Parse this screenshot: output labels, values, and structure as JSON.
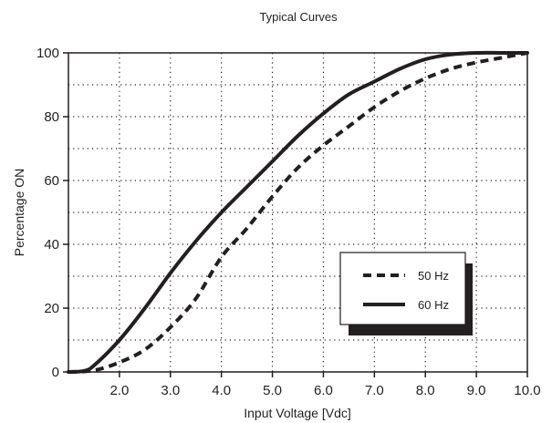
{
  "chart_data": {
    "type": "line",
    "title": "Typical Curves",
    "xlabel": "Input Voltage [Vdc]",
    "ylabel": "Percentage ON",
    "xlim": [
      1.0,
      10.0
    ],
    "ylim": [
      0,
      100
    ],
    "x_ticks": [
      2.0,
      3.0,
      4.0,
      5.0,
      6.0,
      7.0,
      8.0,
      9.0,
      10.0
    ],
    "x_tick_labels": [
      "2.0",
      "3.0",
      "4.0",
      "5.0",
      "6.0",
      "7.0",
      "8.0",
      "9.0",
      "10.0"
    ],
    "y_ticks": [
      0,
      20,
      40,
      60,
      80,
      100
    ],
    "y_tick_labels": [
      "0",
      "20",
      "40",
      "60",
      "80",
      "100"
    ],
    "grid": "dotted",
    "legend_position": "lower-right",
    "series": [
      {
        "name": "50 Hz",
        "style": "dashed",
        "color": "#231f20",
        "x": [
          1.0,
          1.5,
          2.0,
          2.5,
          3.0,
          3.5,
          4.0,
          4.5,
          5.0,
          5.5,
          6.0,
          6.5,
          7.0,
          7.5,
          8.0,
          8.5,
          9.0,
          9.5,
          10.0
        ],
        "y": [
          0,
          0.5,
          3,
          7,
          14,
          23,
          36,
          45,
          55,
          64,
          71,
          77,
          83,
          88,
          92,
          95,
          97,
          98.5,
          100
        ]
      },
      {
        "name": "60 Hz",
        "style": "solid",
        "color": "#231f20",
        "x": [
          1.0,
          1.3,
          1.5,
          2.0,
          2.5,
          3.0,
          3.5,
          4.0,
          4.5,
          5.0,
          5.5,
          6.0,
          6.5,
          7.0,
          7.5,
          8.0,
          8.5,
          9.0,
          9.5,
          10.0
        ],
        "y": [
          0,
          0.3,
          2,
          10,
          20,
          31,
          41,
          50,
          58,
          66,
          74,
          81,
          87,
          91,
          95,
          98,
          99.5,
          100,
          100,
          100
        ]
      }
    ]
  }
}
